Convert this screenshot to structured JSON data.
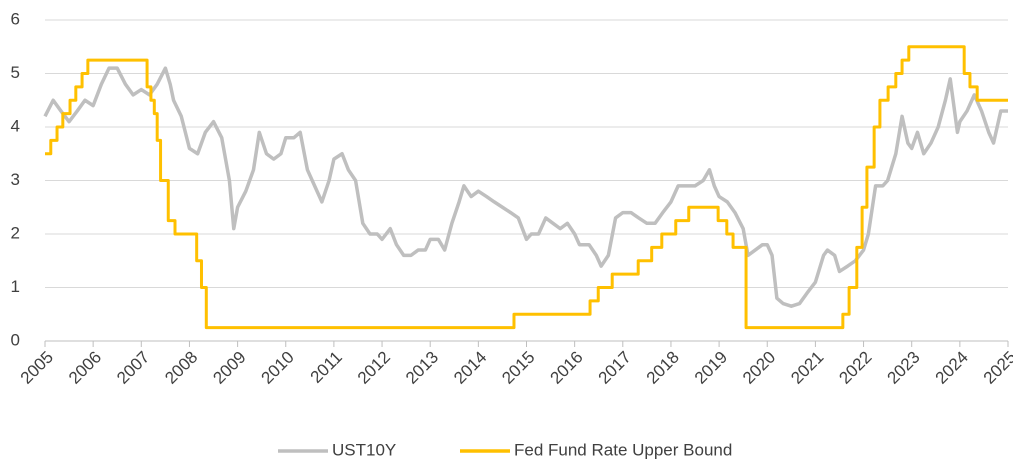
{
  "chart_data": {
    "type": "line",
    "xlim": [
      2005,
      2025
    ],
    "xticks": [
      2005,
      2006,
      2007,
      2008,
      2009,
      2010,
      2011,
      2012,
      2013,
      2014,
      2015,
      2016,
      2017,
      2018,
      2019,
      2020,
      2021,
      2022,
      2023,
      2024,
      2025
    ],
    "ylim": [
      0,
      6
    ],
    "yticks": [
      0,
      1,
      2,
      3,
      4,
      5,
      6
    ],
    "grid": true,
    "legend": "bottom",
    "series": [
      {
        "name": "UST10Y",
        "color": "#bfbfbf",
        "step": false,
        "x": [
          2005.0,
          2005.17,
          2005.33,
          2005.5,
          2005.67,
          2005.83,
          2006.0,
          2006.17,
          2006.33,
          2006.5,
          2006.67,
          2006.83,
          2007.0,
          2007.17,
          2007.33,
          2007.5,
          2007.6,
          2007.67,
          2007.83,
          2008.0,
          2008.17,
          2008.33,
          2008.5,
          2008.67,
          2008.83,
          2008.92,
          2009.0,
          2009.17,
          2009.33,
          2009.45,
          2009.6,
          2009.75,
          2009.9,
          2010.0,
          2010.17,
          2010.3,
          2010.45,
          2010.6,
          2010.75,
          2010.9,
          2011.0,
          2011.17,
          2011.3,
          2011.45,
          2011.6,
          2011.75,
          2011.9,
          2012.0,
          2012.17,
          2012.3,
          2012.45,
          2012.6,
          2012.75,
          2012.9,
          2013.0,
          2013.17,
          2013.3,
          2013.45,
          2013.6,
          2013.7,
          2013.85,
          2014.0,
          2014.17,
          2014.33,
          2014.5,
          2014.67,
          2014.83,
          2015.0,
          2015.1,
          2015.25,
          2015.4,
          2015.55,
          2015.7,
          2015.85,
          2016.0,
          2016.1,
          2016.3,
          2016.45,
          2016.55,
          2016.7,
          2016.85,
          2017.0,
          2017.17,
          2017.33,
          2017.5,
          2017.67,
          2017.83,
          2018.0,
          2018.15,
          2018.33,
          2018.5,
          2018.67,
          2018.8,
          2018.9,
          2019.0,
          2019.17,
          2019.33,
          2019.5,
          2019.6,
          2019.75,
          2019.9,
          2020.0,
          2020.1,
          2020.2,
          2020.33,
          2020.5,
          2020.67,
          2020.83,
          2021.0,
          2021.17,
          2021.25,
          2021.4,
          2021.5,
          2021.67,
          2021.83,
          2022.0,
          2022.1,
          2022.25,
          2022.4,
          2022.5,
          2022.67,
          2022.8,
          2022.92,
          2023.0,
          2023.12,
          2023.25,
          2023.4,
          2023.55,
          2023.7,
          2023.8,
          2023.95,
          2024.0,
          2024.15,
          2024.3,
          2024.45,
          2024.6,
          2024.7,
          2024.85,
          2025.0
        ],
        "values": [
          4.2,
          4.5,
          4.3,
          4.1,
          4.3,
          4.5,
          4.4,
          4.8,
          5.1,
          5.1,
          4.8,
          4.6,
          4.7,
          4.6,
          4.8,
          5.1,
          4.8,
          4.5,
          4.2,
          3.6,
          3.5,
          3.9,
          4.1,
          3.8,
          3.0,
          2.1,
          2.5,
          2.8,
          3.2,
          3.9,
          3.5,
          3.4,
          3.5,
          3.8,
          3.8,
          3.9,
          3.2,
          2.9,
          2.6,
          3.0,
          3.4,
          3.5,
          3.2,
          3.0,
          2.2,
          2.0,
          2.0,
          1.9,
          2.1,
          1.8,
          1.6,
          1.6,
          1.7,
          1.7,
          1.9,
          1.9,
          1.7,
          2.2,
          2.6,
          2.9,
          2.7,
          2.8,
          2.7,
          2.6,
          2.5,
          2.4,
          2.3,
          1.9,
          2.0,
          2.0,
          2.3,
          2.2,
          2.1,
          2.2,
          2.0,
          1.8,
          1.8,
          1.6,
          1.4,
          1.6,
          2.3,
          2.4,
          2.4,
          2.3,
          2.2,
          2.2,
          2.4,
          2.6,
          2.9,
          2.9,
          2.9,
          3.0,
          3.2,
          2.9,
          2.7,
          2.6,
          2.4,
          2.1,
          1.6,
          1.7,
          1.8,
          1.8,
          1.6,
          0.8,
          0.7,
          0.65,
          0.7,
          0.9,
          1.1,
          1.6,
          1.7,
          1.6,
          1.3,
          1.4,
          1.5,
          1.7,
          2.0,
          2.9,
          2.9,
          3.0,
          3.5,
          4.2,
          3.7,
          3.6,
          3.9,
          3.5,
          3.7,
          4.0,
          4.5,
          4.9,
          3.9,
          4.1,
          4.3,
          4.6,
          4.3,
          3.9,
          3.7,
          4.3,
          4.3
        ]
      },
      {
        "name": "Fed Fund Rate Upper Bound",
        "color": "#ffc000",
        "step": true,
        "x": [
          2005.0,
          2005.12,
          2005.25,
          2005.37,
          2005.52,
          2005.64,
          2005.77,
          2005.89,
          2007.12,
          2007.2,
          2007.27,
          2007.33,
          2007.4,
          2007.56,
          2007.7,
          2008.15,
          2008.25,
          2008.35,
          2014.74,
          2016.32,
          2016.49,
          2016.78,
          2017.32,
          2017.6,
          2017.81,
          2018.1,
          2018.37,
          2018.98,
          2019.16,
          2019.29,
          2019.56,
          2021.57,
          2021.7,
          2021.86,
          2021.97,
          2022.07,
          2022.22,
          2022.34,
          2022.51,
          2022.67,
          2022.8,
          2022.94,
          2024.09,
          2024.21,
          2024.36,
          2025.0
        ],
        "values": [
          3.5,
          3.75,
          4.0,
          4.25,
          4.5,
          4.75,
          5.0,
          5.25,
          4.75,
          4.5,
          4.25,
          3.75,
          3.0,
          2.25,
          2.0,
          1.5,
          1.0,
          0.25,
          0.5,
          0.75,
          1.0,
          1.25,
          1.5,
          1.75,
          2.0,
          2.25,
          2.5,
          2.25,
          2.0,
          1.75,
          0.25,
          0.5,
          1.0,
          1.75,
          2.5,
          3.25,
          4.0,
          4.5,
          4.75,
          5.0,
          5.25,
          5.5,
          5.0,
          4.75,
          4.5,
          4.5
        ]
      }
    ]
  }
}
